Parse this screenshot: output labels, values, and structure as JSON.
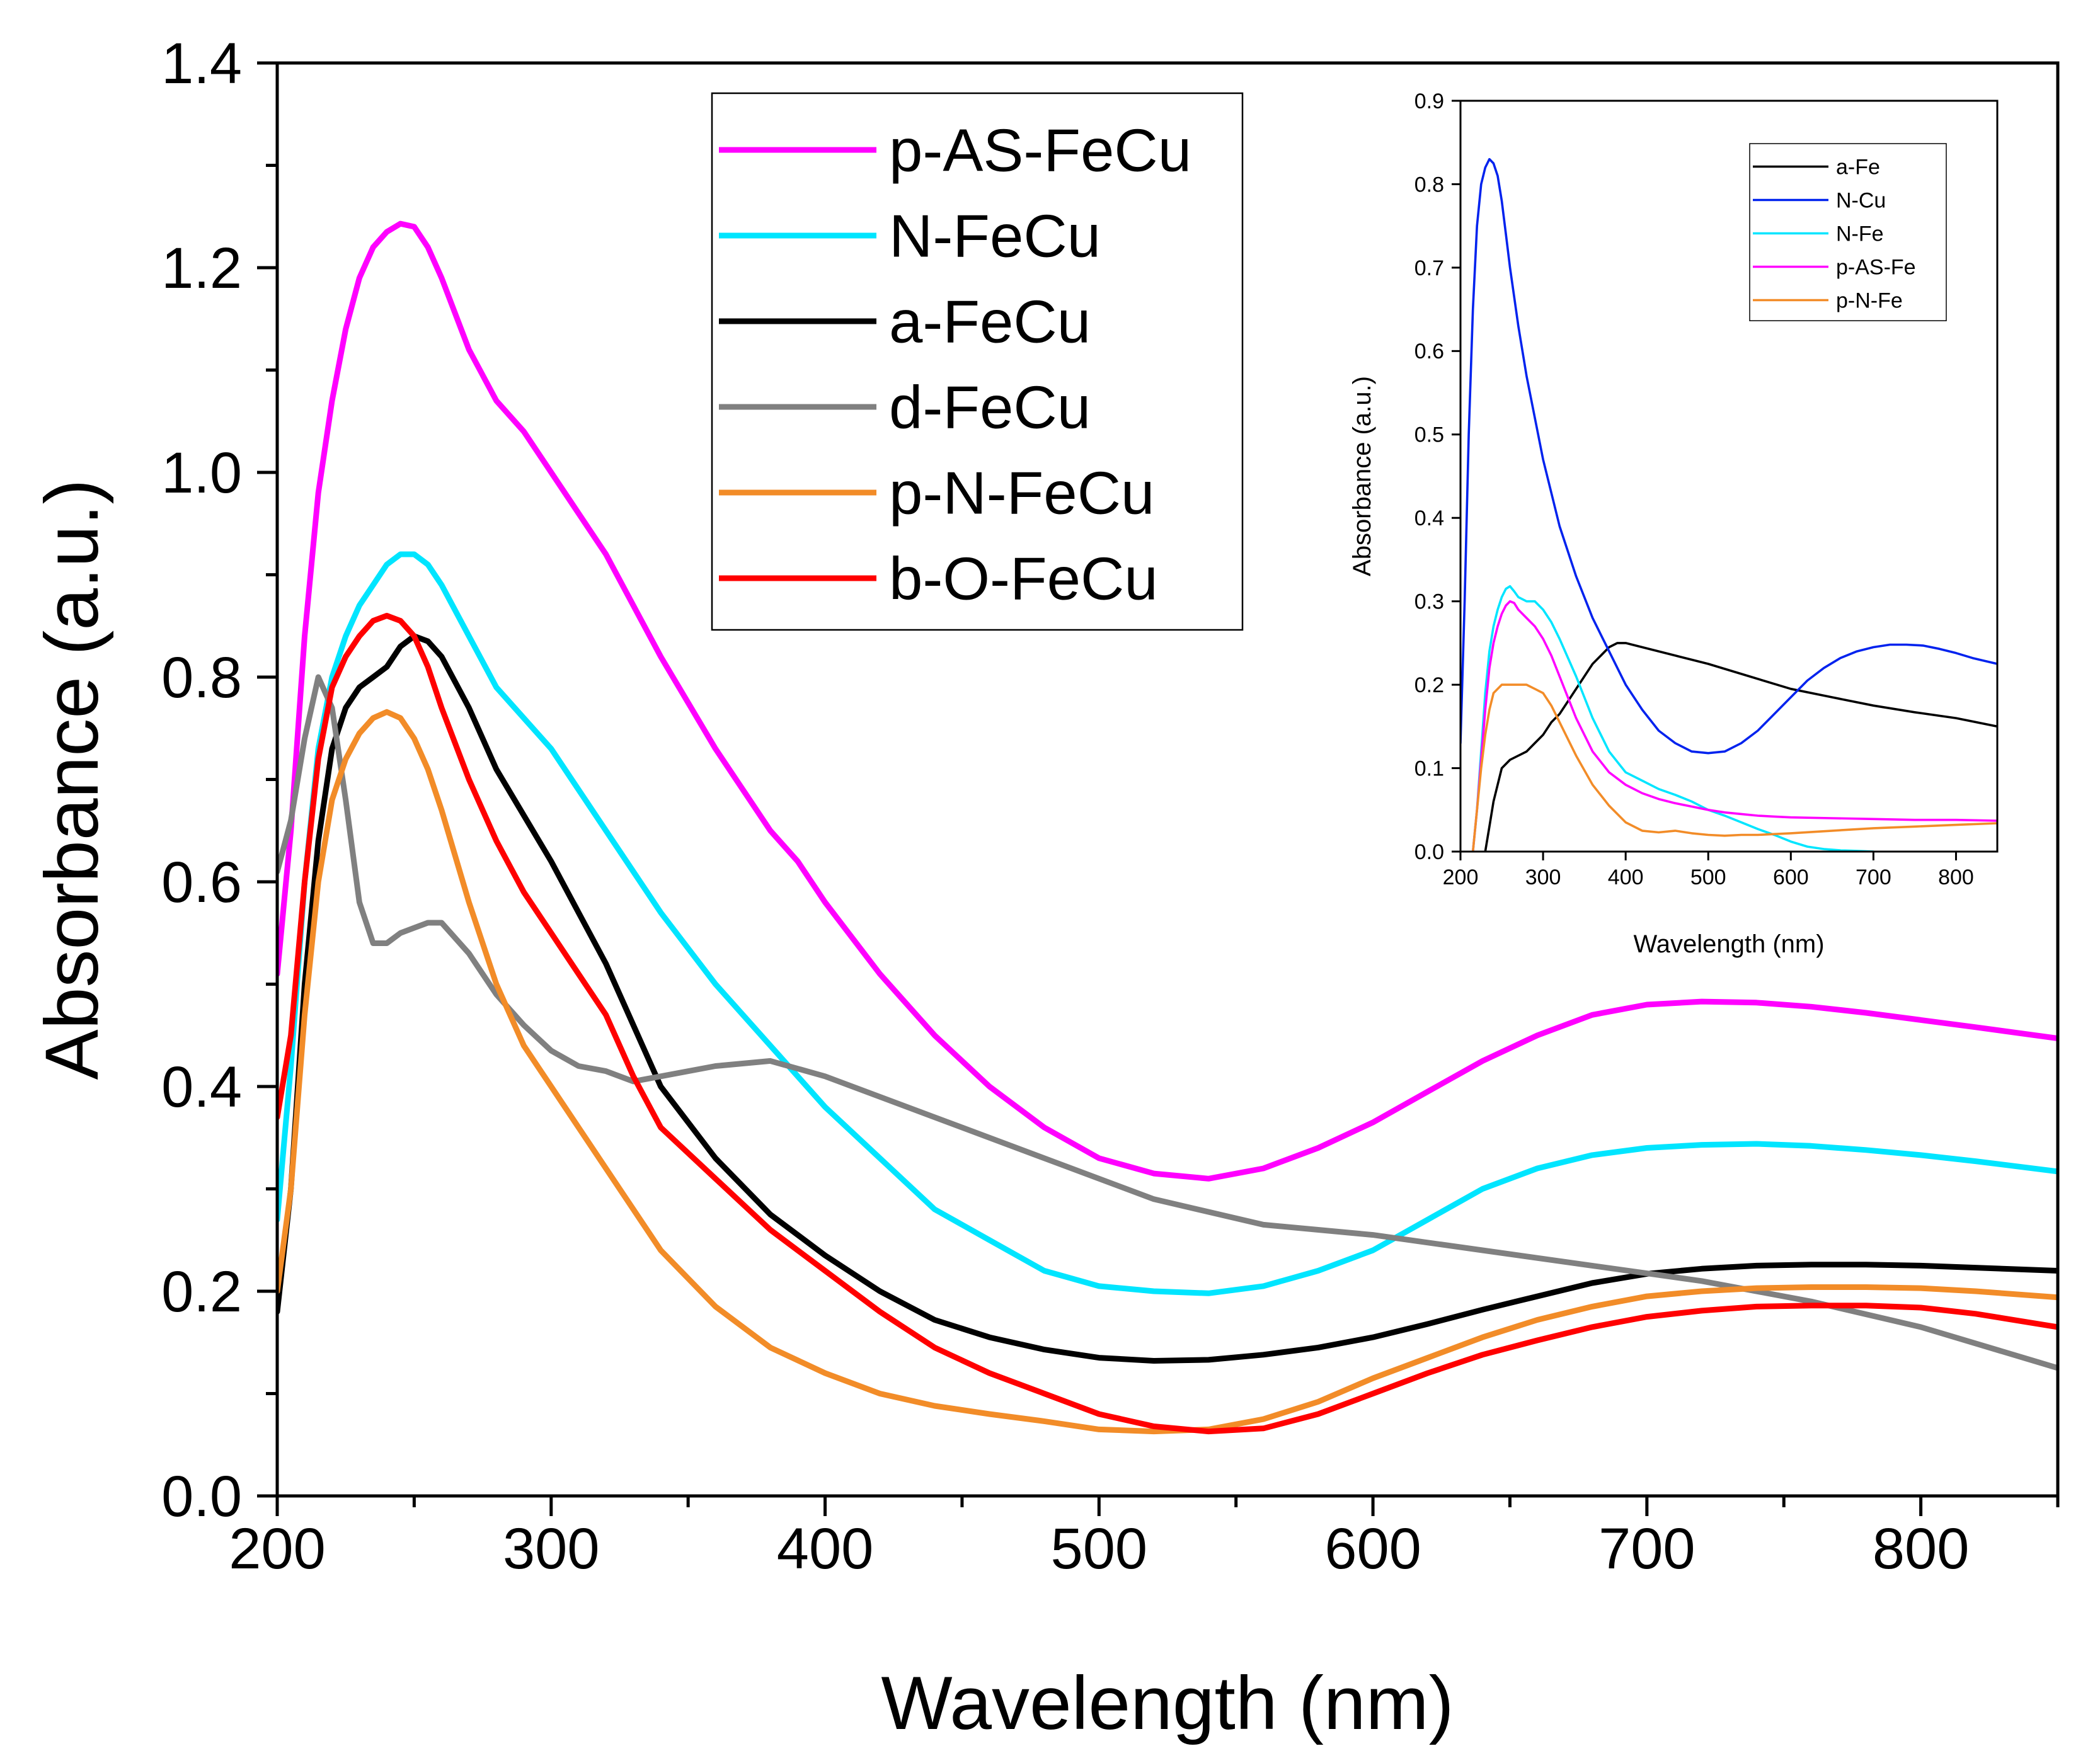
{
  "chart_data": [
    {
      "type": "line",
      "name": "main",
      "title": "",
      "xlabel": "Wavelength (nm)",
      "ylabel": "Absorbance (a.u.)",
      "xlim": [
        200,
        850
      ],
      "ylim": [
        0.0,
        1.4
      ],
      "xticks": [
        200,
        300,
        400,
        500,
        600,
        700,
        800
      ],
      "xtick_labels": [
        "200",
        "300",
        "400",
        "500",
        "600",
        "700",
        "800"
      ],
      "yticks": [
        0.0,
        0.2,
        0.4,
        0.6,
        0.8,
        1.0,
        1.2,
        1.4
      ],
      "ytick_labels": [
        "0.0",
        "0.2",
        "0.4",
        "0.6",
        "0.8",
        "1.0",
        "1.2",
        "1.4"
      ],
      "legend_position": "top-center",
      "grid": false,
      "series": [
        {
          "name": "p-AS-FeCu",
          "color": "#ff00ff",
          "x": [
            200,
            205,
            210,
            215,
            220,
            225,
            230,
            235,
            240,
            245,
            250,
            255,
            260,
            270,
            280,
            290,
            300,
            320,
            340,
            360,
            380,
            390,
            400,
            420,
            440,
            460,
            480,
            500,
            520,
            540,
            560,
            580,
            600,
            620,
            640,
            660,
            680,
            700,
            720,
            740,
            760,
            780,
            800,
            820,
            850
          ],
          "values": [
            0.51,
            0.65,
            0.84,
            0.98,
            1.07,
            1.14,
            1.19,
            1.22,
            1.235,
            1.243,
            1.24,
            1.22,
            1.19,
            1.12,
            1.07,
            1.04,
            1.0,
            0.92,
            0.82,
            0.73,
            0.65,
            0.62,
            0.58,
            0.51,
            0.45,
            0.4,
            0.36,
            0.33,
            0.315,
            0.31,
            0.32,
            0.34,
            0.365,
            0.395,
            0.425,
            0.45,
            0.47,
            0.48,
            0.483,
            0.482,
            0.478,
            0.472,
            0.465,
            0.458,
            0.447
          ]
        },
        {
          "name": "N-FeCu",
          "color": "#00e5ff",
          "x": [
            200,
            205,
            210,
            215,
            220,
            225,
            230,
            235,
            240,
            245,
            250,
            255,
            260,
            270,
            280,
            290,
            300,
            320,
            340,
            360,
            380,
            400,
            420,
            440,
            460,
            480,
            500,
            520,
            540,
            560,
            580,
            600,
            620,
            640,
            660,
            680,
            700,
            720,
            740,
            760,
            780,
            800,
            820,
            850
          ],
          "values": [
            0.27,
            0.42,
            0.6,
            0.73,
            0.8,
            0.84,
            0.87,
            0.89,
            0.91,
            0.92,
            0.92,
            0.91,
            0.89,
            0.84,
            0.79,
            0.76,
            0.73,
            0.65,
            0.57,
            0.5,
            0.44,
            0.38,
            0.33,
            0.28,
            0.25,
            0.22,
            0.205,
            0.2,
            0.198,
            0.205,
            0.22,
            0.24,
            0.27,
            0.3,
            0.32,
            0.333,
            0.34,
            0.343,
            0.344,
            0.342,
            0.338,
            0.333,
            0.327,
            0.317
          ]
        },
        {
          "name": "a-FeCu",
          "color": "#000000",
          "x": [
            200,
            205,
            210,
            215,
            220,
            225,
            230,
            235,
            240,
            245,
            250,
            255,
            260,
            270,
            280,
            290,
            300,
            310,
            320,
            330,
            340,
            360,
            380,
            400,
            420,
            440,
            460,
            480,
            500,
            520,
            540,
            560,
            580,
            600,
            620,
            640,
            660,
            680,
            700,
            720,
            740,
            760,
            780,
            800,
            820,
            850
          ],
          "values": [
            0.18,
            0.3,
            0.5,
            0.64,
            0.73,
            0.77,
            0.79,
            0.8,
            0.81,
            0.83,
            0.84,
            0.835,
            0.82,
            0.77,
            0.71,
            0.665,
            0.62,
            0.57,
            0.52,
            0.46,
            0.4,
            0.33,
            0.275,
            0.235,
            0.2,
            0.172,
            0.155,
            0.143,
            0.135,
            0.132,
            0.133,
            0.138,
            0.145,
            0.155,
            0.168,
            0.182,
            0.195,
            0.208,
            0.217,
            0.222,
            0.225,
            0.226,
            0.226,
            0.225,
            0.223,
            0.22
          ]
        },
        {
          "name": "d-FeCu",
          "color": "#808080",
          "x": [
            200,
            205,
            210,
            215,
            220,
            225,
            230,
            235,
            240,
            245,
            250,
            255,
            260,
            270,
            280,
            290,
            300,
            310,
            320,
            330,
            340,
            360,
            380,
            400,
            440,
            480,
            520,
            560,
            600,
            640,
            680,
            720,
            760,
            800,
            850
          ],
          "values": [
            0.61,
            0.66,
            0.74,
            0.8,
            0.77,
            0.68,
            0.58,
            0.54,
            0.54,
            0.55,
            0.555,
            0.56,
            0.56,
            0.53,
            0.49,
            0.46,
            0.435,
            0.42,
            0.415,
            0.405,
            0.41,
            0.42,
            0.425,
            0.41,
            0.37,
            0.33,
            0.29,
            0.265,
            0.255,
            0.24,
            0.225,
            0.21,
            0.19,
            0.165,
            0.125
          ]
        },
        {
          "name": "p-N-FeCu",
          "color": "#f28c28",
          "x": [
            200,
            205,
            210,
            215,
            220,
            225,
            230,
            235,
            240,
            245,
            250,
            255,
            260,
            270,
            280,
            290,
            300,
            320,
            340,
            360,
            380,
            400,
            420,
            440,
            460,
            480,
            500,
            520,
            540,
            560,
            580,
            600,
            620,
            640,
            660,
            680,
            700,
            720,
            740,
            760,
            780,
            800,
            820,
            850
          ],
          "values": [
            0.2,
            0.3,
            0.47,
            0.6,
            0.68,
            0.72,
            0.745,
            0.76,
            0.766,
            0.76,
            0.74,
            0.71,
            0.67,
            0.58,
            0.5,
            0.44,
            0.4,
            0.32,
            0.24,
            0.185,
            0.145,
            0.12,
            0.1,
            0.088,
            0.08,
            0.073,
            0.065,
            0.063,
            0.065,
            0.075,
            0.092,
            0.115,
            0.135,
            0.155,
            0.172,
            0.185,
            0.195,
            0.2,
            0.203,
            0.204,
            0.204,
            0.203,
            0.2,
            0.194
          ]
        },
        {
          "name": "b-O-FeCu",
          "color": "#ff0000",
          "x": [
            200,
            205,
            210,
            215,
            220,
            225,
            230,
            235,
            240,
            245,
            250,
            255,
            260,
            270,
            280,
            290,
            300,
            310,
            320,
            330,
            340,
            360,
            380,
            400,
            420,
            440,
            460,
            480,
            500,
            520,
            540,
            560,
            580,
            600,
            620,
            640,
            660,
            680,
            700,
            720,
            740,
            760,
            780,
            800,
            820,
            850
          ],
          "values": [
            0.37,
            0.45,
            0.6,
            0.72,
            0.79,
            0.82,
            0.84,
            0.855,
            0.86,
            0.855,
            0.84,
            0.81,
            0.77,
            0.7,
            0.64,
            0.59,
            0.55,
            0.51,
            0.47,
            0.41,
            0.36,
            0.31,
            0.26,
            0.22,
            0.18,
            0.145,
            0.12,
            0.1,
            0.08,
            0.068,
            0.063,
            0.066,
            0.08,
            0.1,
            0.12,
            0.138,
            0.152,
            0.165,
            0.175,
            0.181,
            0.185,
            0.186,
            0.186,
            0.184,
            0.178,
            0.165
          ]
        }
      ]
    },
    {
      "type": "line",
      "name": "inset",
      "title": "",
      "xlabel": "Wavelength (nm)",
      "ylabel": "Absorbance (a.u.)",
      "xlim": [
        200,
        850
      ],
      "ylim": [
        0.0,
        0.9
      ],
      "xticks": [
        200,
        300,
        400,
        500,
        600,
        700,
        800
      ],
      "xtick_labels": [
        "200",
        "300",
        "400",
        "500",
        "600",
        "700",
        "800"
      ],
      "yticks": [
        0.0,
        0.1,
        0.2,
        0.3,
        0.4,
        0.5,
        0.6,
        0.7,
        0.8,
        0.9
      ],
      "ytick_labels": [
        "0.0",
        "0.1",
        "0.2",
        "0.3",
        "0.4",
        "0.5",
        "0.6",
        "0.7",
        "0.8",
        "0.9"
      ],
      "legend_position": "top-right",
      "grid": false,
      "series": [
        {
          "name": "a-Fe",
          "color": "#000000",
          "x": [
            230,
            235,
            240,
            250,
            260,
            270,
            280,
            290,
            300,
            310,
            320,
            330,
            340,
            350,
            360,
            370,
            380,
            390,
            400,
            420,
            440,
            460,
            480,
            500,
            550,
            600,
            650,
            700,
            750,
            800,
            850
          ],
          "values": [
            0.0,
            0.03,
            0.06,
            0.1,
            0.11,
            0.115,
            0.12,
            0.13,
            0.14,
            0.155,
            0.165,
            0.18,
            0.195,
            0.21,
            0.225,
            0.235,
            0.245,
            0.25,
            0.25,
            0.245,
            0.24,
            0.235,
            0.23,
            0.225,
            0.21,
            0.195,
            0.185,
            0.175,
            0.167,
            0.16,
            0.15
          ]
        },
        {
          "name": "N-Cu",
          "color": "#0022ee",
          "x": [
            200,
            205,
            210,
            215,
            220,
            225,
            230,
            235,
            240,
            245,
            250,
            255,
            260,
            270,
            280,
            290,
            300,
            320,
            340,
            360,
            380,
            400,
            420,
            440,
            460,
            480,
            500,
            520,
            540,
            560,
            580,
            600,
            620,
            640,
            660,
            680,
            700,
            720,
            740,
            760,
            780,
            800,
            820,
            850
          ],
          "values": [
            0.13,
            0.3,
            0.5,
            0.65,
            0.75,
            0.8,
            0.82,
            0.83,
            0.825,
            0.81,
            0.78,
            0.74,
            0.7,
            0.63,
            0.57,
            0.52,
            0.47,
            0.39,
            0.33,
            0.28,
            0.24,
            0.2,
            0.17,
            0.145,
            0.13,
            0.12,
            0.118,
            0.12,
            0.13,
            0.145,
            0.165,
            0.185,
            0.205,
            0.22,
            0.232,
            0.24,
            0.245,
            0.248,
            0.248,
            0.247,
            0.243,
            0.238,
            0.232,
            0.225
          ]
        },
        {
          "name": "N-Fe",
          "color": "#00e5ff",
          "x": [
            215,
            220,
            225,
            230,
            235,
            240,
            245,
            250,
            255,
            260,
            265,
            270,
            280,
            290,
            300,
            310,
            320,
            340,
            360,
            380,
            400,
            420,
            440,
            460,
            480,
            500,
            520,
            540,
            560,
            580,
            600,
            620,
            640,
            660,
            680,
            700
          ],
          "values": [
            0.0,
            0.05,
            0.12,
            0.19,
            0.24,
            0.27,
            0.29,
            0.305,
            0.315,
            0.318,
            0.312,
            0.305,
            0.3,
            0.3,
            0.29,
            0.275,
            0.255,
            0.21,
            0.16,
            0.12,
            0.095,
            0.085,
            0.075,
            0.068,
            0.06,
            0.05,
            0.043,
            0.035,
            0.027,
            0.02,
            0.012,
            0.006,
            0.003,
            0.0015,
            0.0008,
            0.0
          ]
        },
        {
          "name": "p-AS-Fe",
          "color": "#ff00ff",
          "x": [
            215,
            220,
            225,
            230,
            235,
            240,
            245,
            250,
            255,
            260,
            265,
            270,
            280,
            290,
            300,
            310,
            320,
            340,
            360,
            380,
            400,
            420,
            440,
            460,
            480,
            500,
            520,
            540,
            560,
            580,
            600,
            650,
            700,
            750,
            800,
            850
          ],
          "values": [
            0.0,
            0.05,
            0.11,
            0.17,
            0.22,
            0.25,
            0.27,
            0.285,
            0.295,
            0.3,
            0.298,
            0.29,
            0.28,
            0.27,
            0.255,
            0.235,
            0.21,
            0.16,
            0.12,
            0.095,
            0.08,
            0.07,
            0.063,
            0.058,
            0.054,
            0.05,
            0.047,
            0.045,
            0.043,
            0.042,
            0.041,
            0.04,
            0.039,
            0.038,
            0.038,
            0.037
          ]
        },
        {
          "name": "p-N-Fe",
          "color": "#f28c28",
          "x": [
            215,
            220,
            225,
            230,
            235,
            240,
            250,
            260,
            270,
            280,
            290,
            300,
            310,
            320,
            340,
            360,
            380,
            400,
            420,
            440,
            460,
            480,
            500,
            520,
            540,
            560,
            580,
            600,
            650,
            700,
            750,
            800,
            850
          ],
          "values": [
            0.0,
            0.05,
            0.1,
            0.14,
            0.17,
            0.19,
            0.2,
            0.2,
            0.2,
            0.2,
            0.195,
            0.19,
            0.175,
            0.155,
            0.115,
            0.08,
            0.055,
            0.035,
            0.025,
            0.023,
            0.025,
            0.022,
            0.02,
            0.019,
            0.02,
            0.02,
            0.021,
            0.022,
            0.025,
            0.028,
            0.03,
            0.032,
            0.034
          ]
        }
      ]
    }
  ]
}
